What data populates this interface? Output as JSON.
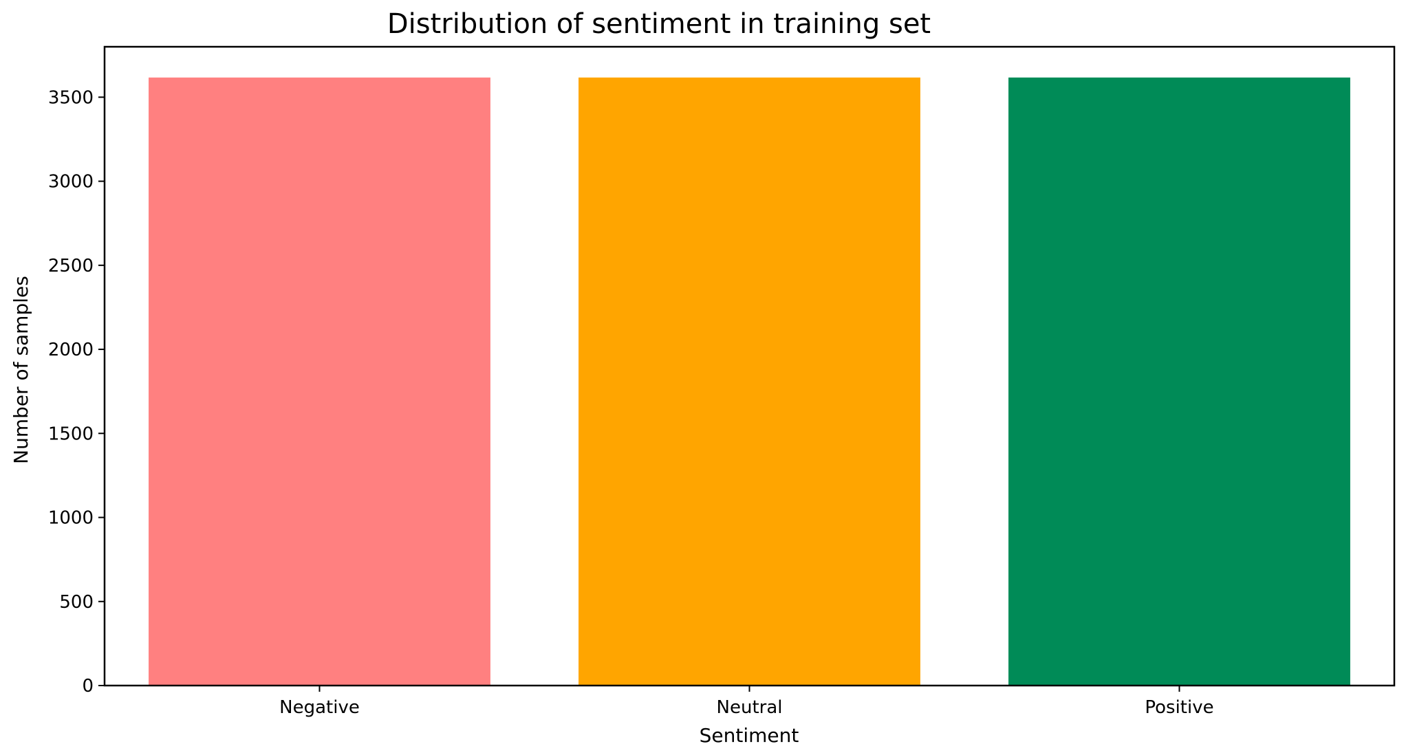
{
  "chart_data": {
    "type": "bar",
    "title": "Distribution of sentiment in training set",
    "xlabel": "Sentiment",
    "ylabel": "Number of samples",
    "categories": [
      "Negative",
      "Neutral",
      "Positive"
    ],
    "values": [
      3617,
      3617,
      3617
    ],
    "colors": [
      "#ff8080",
      "#ffa500",
      "#008b57"
    ],
    "ylim": [
      0,
      3800
    ],
    "yticks": [
      0,
      500,
      1000,
      1500,
      2000,
      2500,
      3000,
      3500
    ],
    "grid": false,
    "legend": "none"
  }
}
